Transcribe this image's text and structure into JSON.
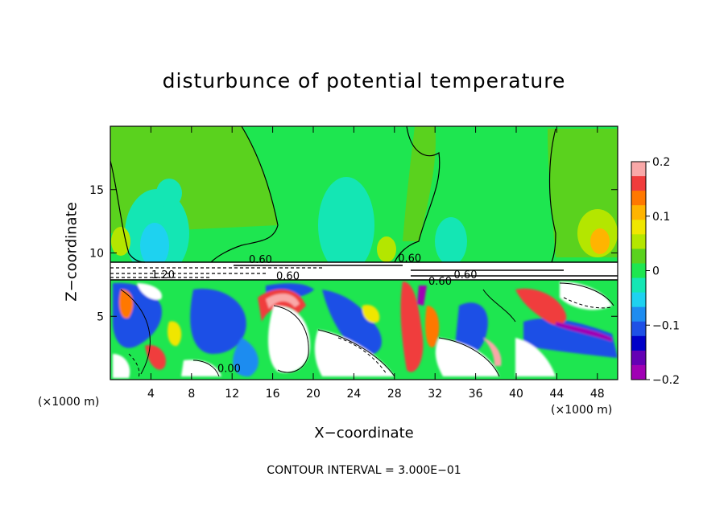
{
  "chart_data": {
    "type": "heatmap",
    "title": "disturbunce of potential temperature",
    "xlabel": "X−coordinate",
    "ylabel": "Z−coordinate",
    "x_unit_label": "(×1000 m)",
    "x_unit_label_right": "(×1000 m)",
    "xlim": [
      0,
      50
    ],
    "ylim": [
      0,
      20
    ],
    "xticks": [
      4,
      8,
      12,
      16,
      20,
      24,
      28,
      32,
      36,
      40,
      44,
      48
    ],
    "xtick_labels": [
      "4",
      "8",
      "12",
      "16",
      "20",
      "24",
      "28",
      "32",
      "36",
      "40",
      "44",
      "48"
    ],
    "yticks": [
      5,
      10,
      15
    ],
    "ytick_labels": [
      "5",
      "10",
      "15"
    ],
    "colorbar": {
      "range": [
        -0.2,
        0.2
      ],
      "ticks": [
        0.2,
        0.1,
        0,
        -0.1,
        -0.2
      ],
      "tick_labels": [
        "0.2",
        "0.1",
        "0",
        "−0.1",
        "−0.2"
      ],
      "colors": [
        "#f9a8a8",
        "#f03c3c",
        "#ff7800",
        "#ffb400",
        "#f0e600",
        "#b4e600",
        "#5ad21e",
        "#1ee650",
        "#14e6b4",
        "#1ed2f0",
        "#1e8cf0",
        "#1e50e6",
        "#0000c8",
        "#6400b4",
        "#a000b4"
      ]
    },
    "contour_labels": [
      {
        "text": "1.20",
        "x": 5.2,
        "z": 8.0
      },
      {
        "text": "0.60",
        "x": 14.8,
        "z": 9.2
      },
      {
        "text": "0.60",
        "x": 17.5,
        "z": 7.9
      },
      {
        "text": "0.60",
        "x": 29.5,
        "z": 9.3
      },
      {
        "text": "0.60",
        "x": 32.5,
        "z": 7.5
      },
      {
        "text": "0.60",
        "x": 35.0,
        "z": 8.0
      },
      {
        "text": "0.00",
        "x": 11.7,
        "z": 0.6
      }
    ],
    "grid": false,
    "legend": "colorbar-right",
    "contour_interval_text": "CONTOUR INTERVAL = 3.000E−01"
  }
}
